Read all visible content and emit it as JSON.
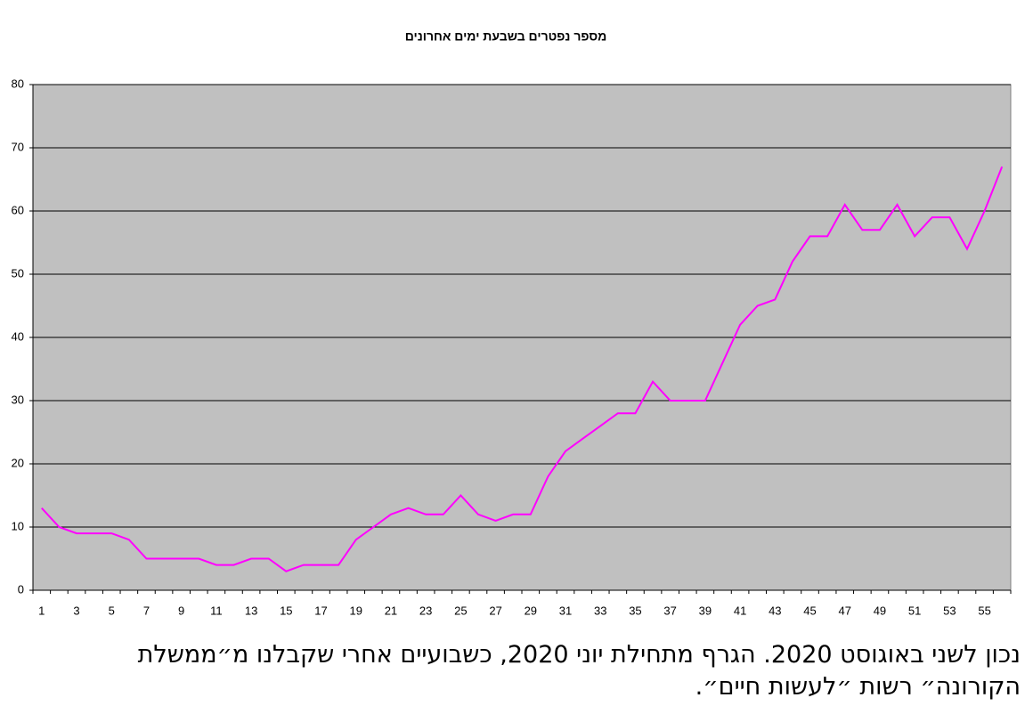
{
  "chart_data": {
    "type": "line",
    "title": "מספר נפטרים בשבעת ימים אחרונים",
    "categories": [
      1,
      null,
      3,
      null,
      5,
      null,
      7,
      null,
      9,
      null,
      11,
      null,
      13,
      null,
      15,
      null,
      17,
      null,
      19,
      null,
      21,
      null,
      23,
      null,
      25,
      null,
      27,
      null,
      29,
      null,
      31,
      null,
      33,
      null,
      35,
      null,
      37,
      null,
      39,
      null,
      41,
      null,
      43,
      null,
      45,
      null,
      47,
      null,
      49,
      null,
      51,
      null,
      53,
      null,
      55,
      null
    ],
    "values": [
      13,
      10,
      9,
      9,
      9,
      8,
      5,
      5,
      5,
      5,
      4,
      4,
      5,
      5,
      3,
      4,
      4,
      4,
      8,
      10,
      12,
      13,
      12,
      12,
      15,
      12,
      11,
      12,
      12,
      18,
      22,
      24,
      26,
      28,
      28,
      33,
      30,
      30,
      30,
      36,
      42,
      45,
      46,
      52,
      56,
      56,
      61,
      57,
      57,
      61,
      56,
      59,
      59,
      54,
      60,
      67
    ],
    "color": "#ff00ff",
    "background": "#c0c0c0",
    "ylim": [
      0,
      80
    ],
    "yticks": [
      0,
      10,
      20,
      30,
      40,
      50,
      60,
      70,
      80
    ],
    "grid": true
  },
  "caption": {
    "lines": [
      "נכון לשני באוגוסט 2020. הגרף מתחילת יוני 2020, כשבועיים אחרי שקבלנו מ״ממשלת",
      "הקורונה״ רשות ״לעשות חיים״."
    ]
  }
}
